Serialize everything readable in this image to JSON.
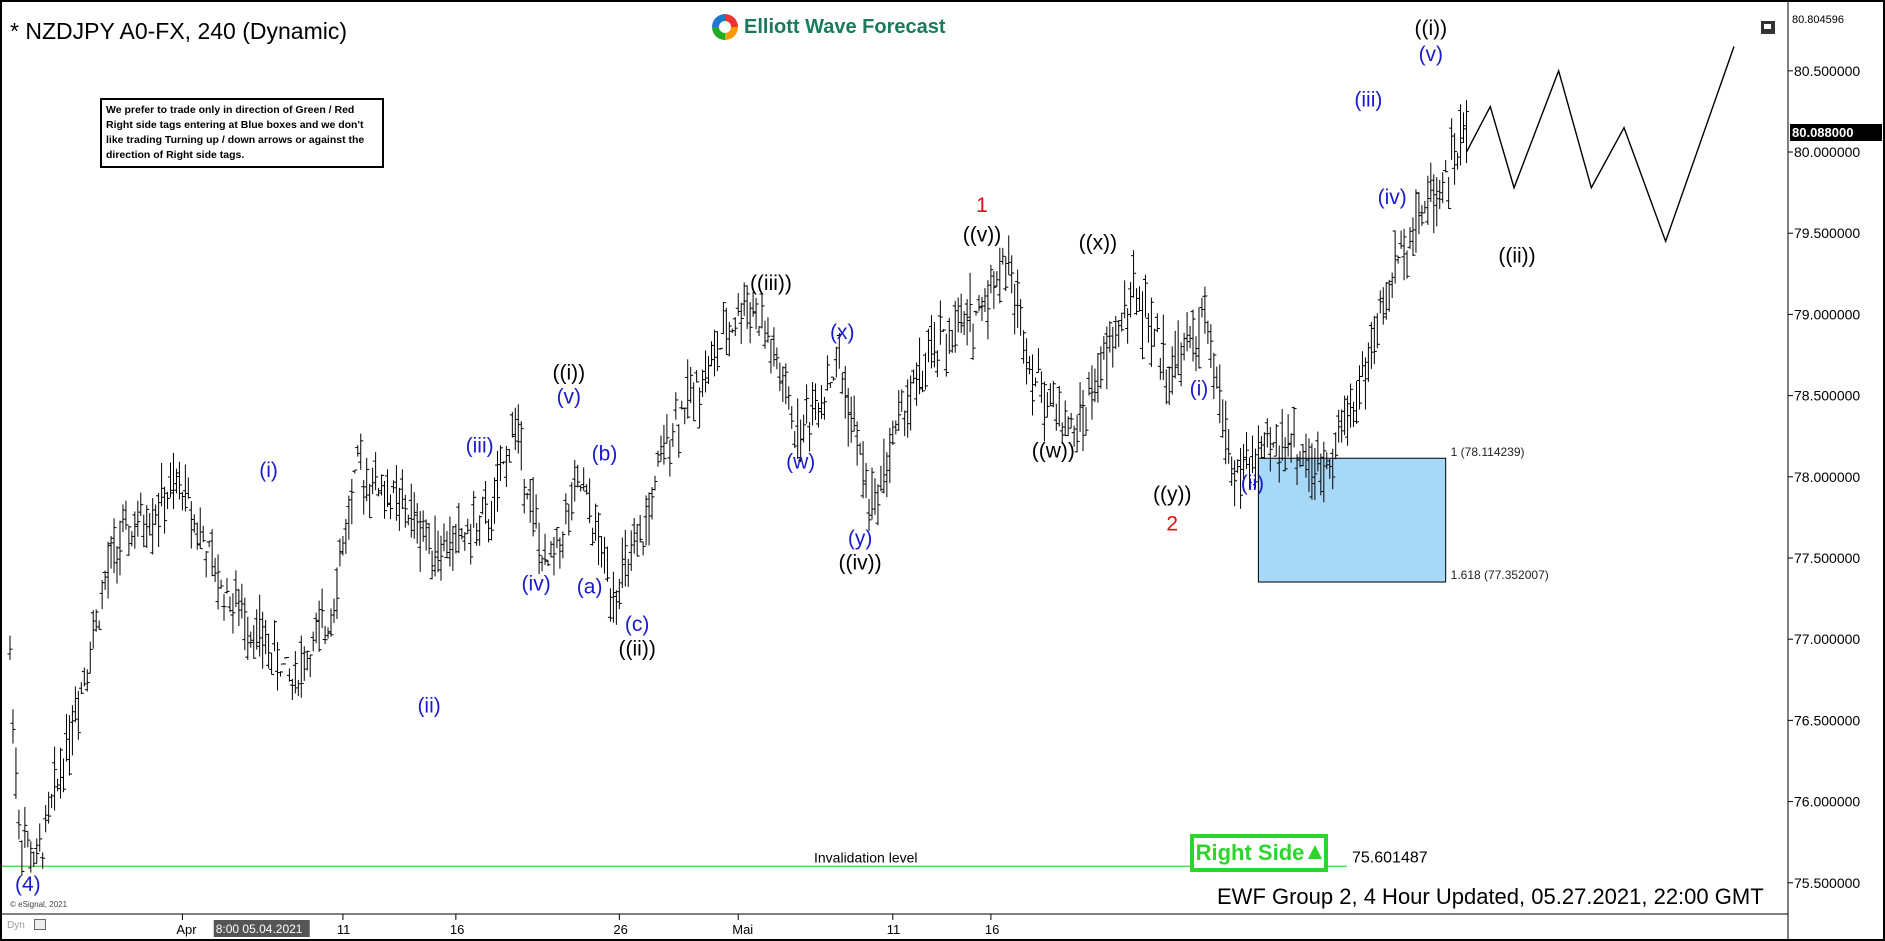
{
  "header": {
    "title": "* NZDJPY A0-FX, 240 (Dynamic)",
    "brand": "Elliott Wave Forecast"
  },
  "notice": "We prefer to trade only in direction of Green / Red Right side tags entering at Blue boxes and we don't like trading Turning up / down arrows or against the direction of Right side tags.",
  "footer": "EWF Group 2, 4 Hour Updated, 05.27.2021, 22:00 GMT",
  "right_side_label": "Right Side",
  "copyright": "© eSignal, 2021",
  "dyn_label": "Dyn",
  "price_top": "80.804596",
  "price_current": "80.088000",
  "colors": {
    "blue_wave": "#1a1acc",
    "red_wave": "#e01010",
    "black_wave": "#000000",
    "right_side_green": "#2bd52b",
    "box_fill": "#a8d8f8",
    "invalidation_line": "#33dd33"
  },
  "chart_data": {
    "type": "line",
    "title": "* NZDJPY A0-FX, 240 (Dynamic)",
    "ylim": [
      75.4,
      80.85
    ],
    "y_ticks": [
      "80.500000",
      "80.000000",
      "79.500000",
      "79.000000",
      "78.500000",
      "78.000000",
      "77.500000",
      "77.000000",
      "76.500000",
      "76.000000",
      "75.500000"
    ],
    "x_ticks": [
      "Apr",
      "11",
      "16",
      "26",
      "Mai",
      "11",
      "16"
    ],
    "x_cursor_label": "8:00 05.04.2021",
    "grid": false,
    "price_path": [
      [
        0,
        76.9
      ],
      [
        3,
        75.85
      ],
      [
        9,
        75.6
      ],
      [
        35,
        77.55
      ],
      [
        58,
        77.95
      ],
      [
        70,
        77.35
      ],
      [
        95,
        76.75
      ],
      [
        107,
        77.1
      ],
      [
        117,
        78.05
      ],
      [
        130,
        77.85
      ],
      [
        145,
        77.55
      ],
      [
        162,
        77.75
      ],
      [
        170,
        78.35
      ],
      [
        180,
        77.4
      ],
      [
        192,
        77.95
      ],
      [
        203,
        77.3
      ],
      [
        212,
        77.55
      ],
      [
        222,
        78.3
      ],
      [
        236,
        78.7
      ],
      [
        248,
        79.1
      ],
      [
        255,
        78.85
      ],
      [
        265,
        78.25
      ],
      [
        279,
        78.7
      ],
      [
        290,
        77.8
      ],
      [
        300,
        78.4
      ],
      [
        312,
        78.8
      ],
      [
        325,
        79.0
      ],
      [
        335,
        79.35
      ],
      [
        345,
        78.6
      ],
      [
        358,
        78.25
      ],
      [
        368,
        78.7
      ],
      [
        378,
        79.15
      ],
      [
        390,
        78.65
      ],
      [
        402,
        78.95
      ],
      [
        412,
        78.0
      ],
      [
        430,
        78.25
      ],
      [
        440,
        78.0
      ],
      [
        455,
        78.6
      ],
      [
        468,
        79.4
      ],
      [
        475,
        79.65
      ],
      [
        483,
        79.85
      ],
      [
        490,
        80.15
      ]
    ],
    "projection_path": [
      [
        490,
        80.0
      ],
      [
        498,
        80.28
      ],
      [
        506,
        79.78
      ],
      [
        521,
        80.5
      ],
      [
        532,
        79.78
      ],
      [
        543,
        80.15
      ],
      [
        557,
        79.45
      ],
      [
        580,
        80.65
      ]
    ],
    "x_range": [
      0,
      580
    ],
    "invalidation_level": {
      "label": "Invalidation level",
      "value": "75.601487",
      "y": 75.601487
    },
    "blue_box": {
      "x_start": 420,
      "x_end": 483,
      "y_top": 78.114239,
      "y_bottom": 77.352007,
      "label_top": "1 (78.114239)",
      "label_bottom": "1.618 (77.352007)"
    },
    "wave_labels": [
      {
        "text": "(4)",
        "x": 6,
        "y": 75.45,
        "color": "blue_wave"
      },
      {
        "text": "(i)",
        "x": 87,
        "y": 78.0,
        "color": "blue_wave"
      },
      {
        "text": "(ii)",
        "x": 141,
        "y": 76.55,
        "color": "blue_wave"
      },
      {
        "text": "(iii)",
        "x": 158,
        "y": 78.15,
        "color": "blue_wave"
      },
      {
        "text": "(iv)",
        "x": 177,
        "y": 77.3,
        "color": "blue_wave"
      },
      {
        "text": "((i))",
        "x": 188,
        "y": 78.6,
        "color": "black_wave"
      },
      {
        "text": "(v)",
        "x": 188,
        "y": 78.45,
        "color": "blue_wave"
      },
      {
        "text": "(b)",
        "x": 200,
        "y": 78.1,
        "color": "blue_wave"
      },
      {
        "text": "(a)",
        "x": 195,
        "y": 77.28,
        "color": "blue_wave"
      },
      {
        "text": "(c)",
        "x": 211,
        "y": 77.05,
        "color": "blue_wave"
      },
      {
        "text": "((ii))",
        "x": 211,
        "y": 76.9,
        "color": "black_wave"
      },
      {
        "text": "((iii))",
        "x": 256,
        "y": 79.15,
        "color": "black_wave"
      },
      {
        "text": "(x)",
        "x": 280,
        "y": 78.85,
        "color": "blue_wave"
      },
      {
        "text": "(w)",
        "x": 266,
        "y": 78.05,
        "color": "blue_wave"
      },
      {
        "text": "(y)",
        "x": 286,
        "y": 77.58,
        "color": "blue_wave"
      },
      {
        "text": "((iv))",
        "x": 286,
        "y": 77.43,
        "color": "black_wave"
      },
      {
        "text": "1",
        "x": 327,
        "y": 79.63,
        "color": "red_wave"
      },
      {
        "text": "((v))",
        "x": 327,
        "y": 79.45,
        "color": "black_wave"
      },
      {
        "text": "((x))",
        "x": 366,
        "y": 79.4,
        "color": "black_wave"
      },
      {
        "text": "((w))",
        "x": 351,
        "y": 78.12,
        "color": "black_wave"
      },
      {
        "text": "(i)",
        "x": 400,
        "y": 78.5,
        "color": "blue_wave"
      },
      {
        "text": "((y))",
        "x": 391,
        "y": 77.85,
        "color": "black_wave"
      },
      {
        "text": "2",
        "x": 391,
        "y": 77.67,
        "color": "red_wave"
      },
      {
        "text": "(ii)",
        "x": 418,
        "y": 77.92,
        "color": "blue_wave"
      },
      {
        "text": "(iii)",
        "x": 457,
        "y": 80.28,
        "color": "blue_wave"
      },
      {
        "text": "(iv)",
        "x": 465,
        "y": 79.68,
        "color": "blue_wave"
      },
      {
        "text": "((i))",
        "x": 478,
        "y": 80.72,
        "color": "black_wave"
      },
      {
        "text": "(v)",
        "x": 478,
        "y": 80.56,
        "color": "blue_wave"
      },
      {
        "text": "((ii))",
        "x": 507,
        "y": 79.32,
        "color": "black_wave"
      }
    ]
  }
}
